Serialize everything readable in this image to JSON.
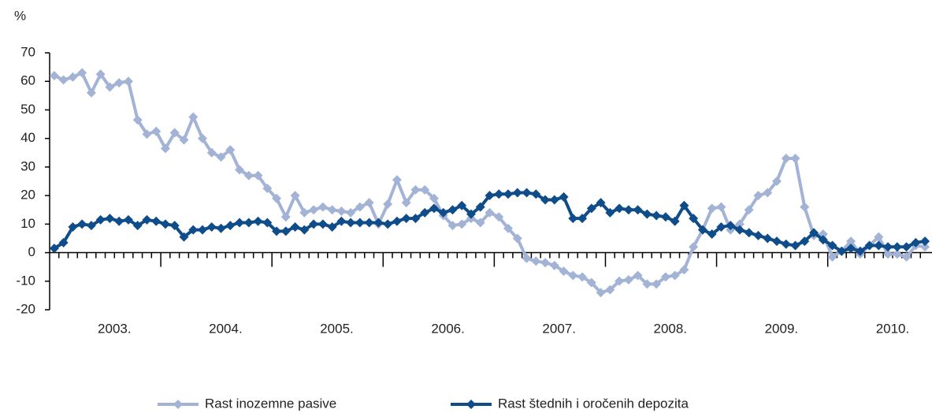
{
  "chart_data": {
    "type": "line",
    "y_label": "%",
    "categories": [
      null,
      null,
      null,
      null,
      null,
      null,
      "2003.",
      null,
      null,
      null,
      null,
      null,
      null,
      null,
      null,
      null,
      null,
      null,
      "2004.",
      null,
      null,
      null,
      null,
      null,
      null,
      null,
      null,
      null,
      null,
      null,
      "2005.",
      null,
      null,
      null,
      null,
      null,
      null,
      null,
      null,
      null,
      null,
      null,
      "2006.",
      null,
      null,
      null,
      null,
      null,
      null,
      null,
      null,
      null,
      null,
      null,
      "2007.",
      null,
      null,
      null,
      null,
      null,
      null,
      null,
      null,
      null,
      null,
      null,
      "2008.",
      null,
      null,
      null,
      null,
      null,
      null,
      null,
      null,
      null,
      null,
      null,
      "2009.",
      null,
      null,
      null,
      null,
      null,
      null,
      null,
      null,
      null,
      null,
      null,
      "2010.",
      null,
      null,
      null,
      null
    ],
    "series": [
      {
        "name": "Rast inozemne pasive",
        "color": "#a3b3d6",
        "values": [
          62,
          60.5,
          61.5,
          63,
          56,
          62.5,
          58,
          59.5,
          60,
          46.5,
          41.5,
          42.5,
          36.5,
          42,
          39.5,
          47.5,
          40,
          35,
          33.5,
          36,
          29,
          27,
          27,
          22.5,
          19,
          12.5,
          20,
          14,
          15,
          16,
          15,
          14.5,
          14,
          16,
          17.5,
          10,
          17,
          25.5,
          17.5,
          22,
          22,
          19,
          13,
          9.5,
          10,
          12,
          10.5,
          14,
          12.5,
          8.5,
          5,
          -2,
          -3,
          -3.5,
          -4.5,
          -6.5,
          -8,
          -8.5,
          -10.5,
          -14,
          -13,
          -10,
          -9.5,
          -8,
          -11,
          -11,
          -8.5,
          -8,
          -6,
          2,
          8,
          15.5,
          16,
          8,
          10,
          15,
          20,
          21,
          25,
          33,
          33,
          16,
          6,
          6.5,
          -1.5,
          0.5,
          4,
          -0.5,
          2.5,
          5.5,
          -0.5,
          -0.5,
          -1.5,
          2.5,
          2
        ]
      },
      {
        "name": "Rast štednih i oročenih depozita",
        "color": "#0f4c8a",
        "values": [
          1.5,
          3.5,
          9,
          10,
          9.5,
          11.5,
          12,
          11,
          11.5,
          9.5,
          11.5,
          11,
          10,
          9.5,
          5.5,
          8,
          8,
          9,
          8.5,
          9.5,
          10.5,
          10.5,
          11,
          10.5,
          7.5,
          7.5,
          9,
          8,
          10,
          10,
          9,
          11,
          10.5,
          10.5,
          10.5,
          10.5,
          10,
          11,
          12,
          12,
          14,
          15.5,
          14,
          15,
          16.5,
          13.5,
          16,
          20,
          20.5,
          20.5,
          21,
          21,
          20.5,
          18.5,
          18.5,
          19.5,
          12,
          12,
          15.5,
          17.5,
          14,
          15.5,
          15,
          15,
          13.5,
          13,
          12.5,
          11,
          16.5,
          12,
          8,
          6.5,
          9,
          9.5,
          8,
          7,
          6,
          5,
          4,
          3,
          2.5,
          4,
          7,
          4.5,
          2.5,
          0.5,
          1.5,
          0.5,
          2.5,
          2.5,
          2,
          2,
          2,
          3.5,
          4
        ]
      }
    ],
    "ylim": [
      -20,
      70
    ],
    "yticks": [
      -20,
      -10,
      0,
      10,
      20,
      30,
      40,
      50,
      60,
      70
    ],
    "legend": "bottom"
  }
}
